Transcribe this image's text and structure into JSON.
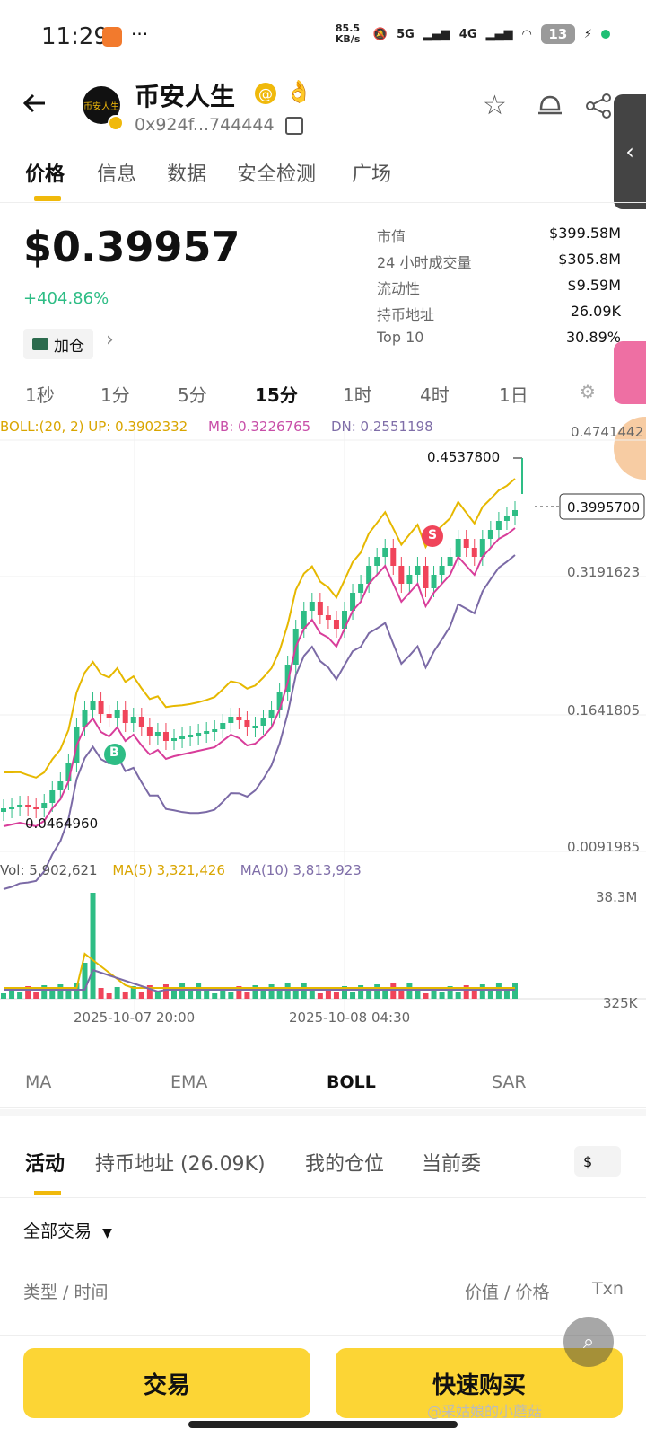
{
  "status": {
    "time": "11:29",
    "speed": "85.5 KB/s",
    "net1": "5G",
    "net2": "4G",
    "battery": "13"
  },
  "header": {
    "back_icon": "arrow-left-icon",
    "title": "币安人生",
    "address": "0x924f...744444",
    "avatar_text": "币安人生"
  },
  "tabs": [
    "价格",
    "信息",
    "数据",
    "安全检测",
    "广场"
  ],
  "price": {
    "value": "$0.39957",
    "change": "+404.86%",
    "add_position": "加仓"
  },
  "stats": [
    {
      "k": "市值",
      "v": "$399.58M"
    },
    {
      "k": "24 小时成交量",
      "v": "$305.8M"
    },
    {
      "k": "流动性",
      "v": "$9.59M"
    },
    {
      "k": "持币地址",
      "v": "26.09K"
    },
    {
      "k": "Top 10",
      "v": "30.89%"
    }
  ],
  "timeframes": [
    "1秒",
    "1分",
    "5分",
    "15分",
    "1时",
    "4时",
    "1日"
  ],
  "chart_data": {
    "type": "candlestick",
    "boll_label": "BOLL:(20, 2)",
    "boll_up": "UP: 0.3902332",
    "boll_mb": "MB: 0.3226765",
    "boll_dn": "DN: 0.2551198",
    "y_ticks": [
      "0.4741442",
      "0.3191623",
      "0.1641805",
      "0.0091985"
    ],
    "high_label": "0.4537800",
    "low_label": "0.0464960",
    "current_label": "0.3995700",
    "vol_label": "Vol: 5,902,621",
    "ma5_label": "MA(5) 3,321,426",
    "ma10_label": "MA(10) 3,813,923",
    "vol_ticks": [
      "38.3M",
      "325K"
    ],
    "x_ticks": [
      "2025-10-07 20:00",
      "2025-10-08 04:30"
    ],
    "marker_b": "B",
    "marker_s": "S"
  },
  "indicators": [
    "MA",
    "EMA",
    "BOLL",
    "SAR"
  ],
  "activity_tabs": [
    "活动",
    "持币地址 (26.09K)",
    "我的仓位",
    "当前委"
  ],
  "currency": "$",
  "filter": "全部交易",
  "columns": {
    "left": "类型 / 时间",
    "mid": "价值 / 价格",
    "right": "Txn"
  },
  "buttons": {
    "trade": "交易",
    "quick_buy": "快速购买"
  },
  "watermark": "@采姑娘的小蘑菇"
}
